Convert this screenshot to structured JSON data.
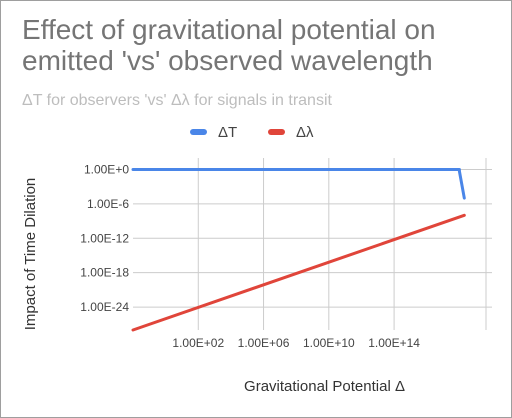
{
  "chart_data": {
    "type": "line",
    "title": "Effect of gravitational potential on emitted 'vs' observed wavelength",
    "subtitle": "ΔT for observers 'vs' Δλ for signals in transit",
    "xlabel": "Gravitational Potential Δ",
    "ylabel": "Impact of Time Dilation",
    "x_scale": "log",
    "y_scale": "log",
    "xlim": [
      0.01,
      1e+20
    ],
    "ylim": [
      1e-28,
      100.0
    ],
    "x_ticks": [
      100.0,
      1000000.0,
      10000000000.0,
      100000000000000.0
    ],
    "x_tick_labels": [
      "1.00E+02",
      "1.00E+06",
      "1.00E+10",
      "1.00E+14"
    ],
    "y_ticks": [
      1,
      1e-06,
      1e-12,
      1e-18,
      1e-24
    ],
    "y_tick_labels": [
      "1.00E+0",
      "1.00E-6",
      "1.00E-12",
      "1.00E-18",
      "1.00E-24"
    ],
    "grid": true,
    "legend_position": "top",
    "series": [
      {
        "name": "ΔT",
        "color": "#4a86e8",
        "x": [
          0.01,
          100.0,
          1000000.0,
          10000000000.0,
          100000000000000.0,
          1e+17,
          1e+18,
          1e+18,
          2e+18
        ],
        "y": [
          1,
          1,
          1,
          1,
          1,
          0.999,
          0.99,
          0.5,
          1e-05
        ]
      },
      {
        "name": "Δλ",
        "color": "#e0453a",
        "x": [
          0.01,
          2e+18
        ],
        "y": [
          1e-28,
          1e-08
        ]
      }
    ]
  }
}
